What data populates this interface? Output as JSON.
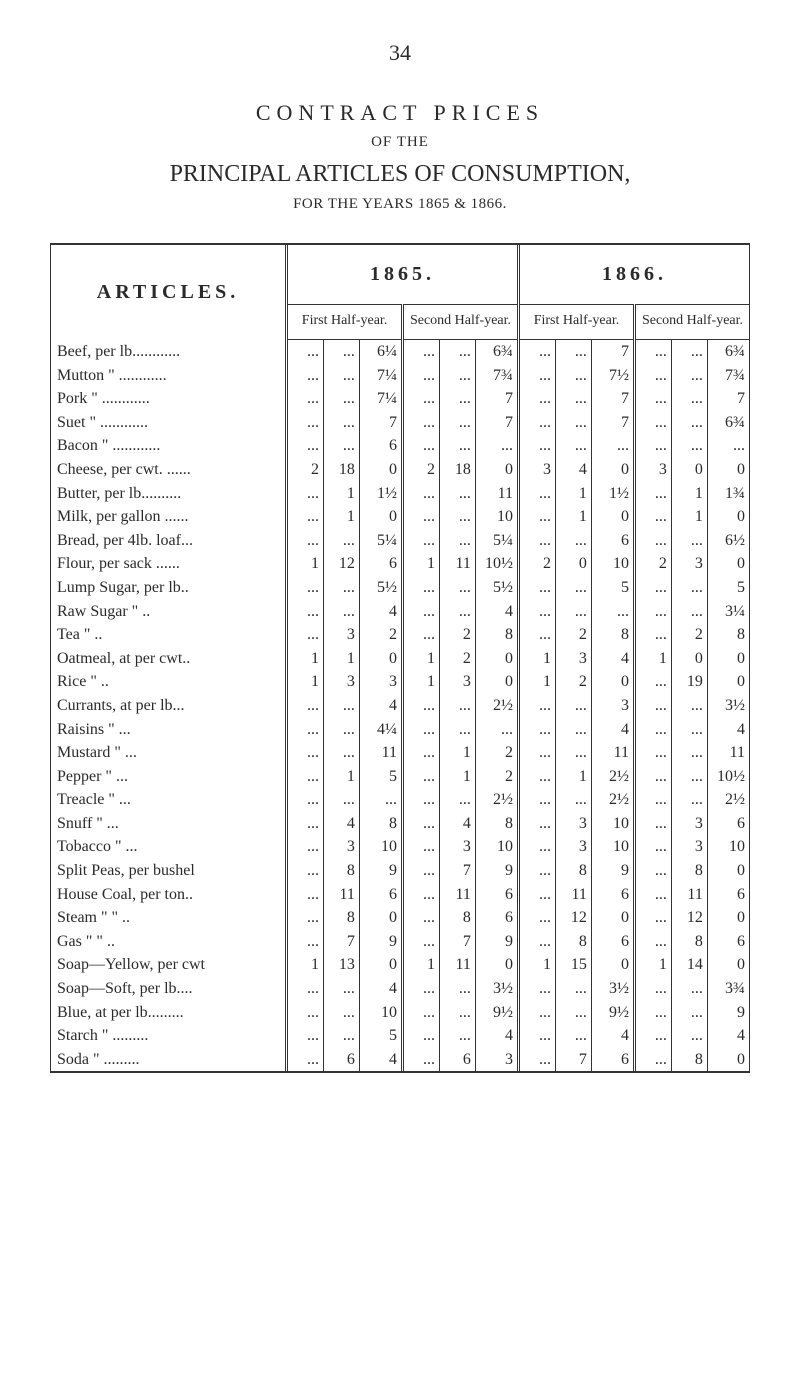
{
  "page_number": "34",
  "headings": {
    "contract_prices": "CONTRACT PRICES",
    "of_the": "OF THE",
    "principal": "PRINCIPAL ARTICLES OF CONSUMPTION,",
    "years": "FOR THE YEARS 1865 & 1866."
  },
  "table": {
    "articles_header": "ARTICLES.",
    "year1": "1865.",
    "year2": "1866.",
    "half_labels": {
      "first": "First\nHalf-year.",
      "second": "Second\nHalf-year."
    },
    "rows": [
      {
        "label": "Beef, per lb............",
        "h1": [
          "...",
          "...",
          "6¼"
        ],
        "h2": [
          "...",
          "...",
          "6¾"
        ],
        "h3": [
          "...",
          "...",
          "7"
        ],
        "h4": [
          "...",
          "...",
          "6¾"
        ]
      },
      {
        "label": "Mutton  \"  ............",
        "h1": [
          "...",
          "...",
          "7¼"
        ],
        "h2": [
          "...",
          "...",
          "7¾"
        ],
        "h3": [
          "...",
          "...",
          "7½"
        ],
        "h4": [
          "...",
          "...",
          "7¾"
        ]
      },
      {
        "label": "Pork      \"  ............",
        "h1": [
          "...",
          "...",
          "7¼"
        ],
        "h2": [
          "...",
          "...",
          "7"
        ],
        "h3": [
          "...",
          "...",
          "7"
        ],
        "h4": [
          "...",
          "...",
          "7"
        ]
      },
      {
        "label": "Suet       \"  ............",
        "h1": [
          "...",
          "...",
          "7"
        ],
        "h2": [
          "...",
          "...",
          "7"
        ],
        "h3": [
          "...",
          "...",
          "7"
        ],
        "h4": [
          "...",
          "...",
          "6¾"
        ]
      },
      {
        "label": "Bacon    \"  ............",
        "h1": [
          "...",
          "...",
          "6"
        ],
        "h2": [
          "...",
          "...",
          "..."
        ],
        "h3": [
          "...",
          "...",
          "..."
        ],
        "h4": [
          "...",
          "...",
          "..."
        ]
      },
      {
        "label": "Cheese, per cwt. ......",
        "h1": [
          "2",
          "18",
          "0"
        ],
        "h2": [
          "2",
          "18",
          "0"
        ],
        "h3": [
          "3",
          "4",
          "0"
        ],
        "h4": [
          "3",
          "0",
          "0"
        ]
      },
      {
        "label": "Butter, per lb..........",
        "h1": [
          "...",
          "1",
          "1½"
        ],
        "h2": [
          "...",
          "...",
          "11"
        ],
        "h3": [
          "...",
          "1",
          "1½"
        ],
        "h4": [
          "...",
          "1",
          "1¾"
        ]
      },
      {
        "label": "Milk, per gallon ......",
        "h1": [
          "...",
          "1",
          "0"
        ],
        "h2": [
          "...",
          "...",
          "10"
        ],
        "h3": [
          "...",
          "1",
          "0"
        ],
        "h4": [
          "...",
          "1",
          "0"
        ]
      },
      {
        "label": "Bread, per 4lb. loaf...",
        "h1": [
          "...",
          "...",
          "5¼"
        ],
        "h2": [
          "...",
          "...",
          "5¼"
        ],
        "h3": [
          "...",
          "...",
          "6"
        ],
        "h4": [
          "...",
          "...",
          "6½"
        ]
      },
      {
        "label": "Flour, per sack ......",
        "h1": [
          "1",
          "12",
          "6"
        ],
        "h2": [
          "1",
          "11",
          "10½"
        ],
        "h3": [
          "2",
          "0",
          "10"
        ],
        "h4": [
          "2",
          "3",
          "0"
        ]
      },
      {
        "label": "Lump Sugar, per lb..",
        "h1": [
          "...",
          "...",
          "5½"
        ],
        "h2": [
          "...",
          "...",
          "5½"
        ],
        "h3": [
          "...",
          "...",
          "5"
        ],
        "h4": [
          "...",
          "...",
          "5"
        ]
      },
      {
        "label": "Raw Sugar      \"  ..",
        "h1": [
          "...",
          "...",
          "4"
        ],
        "h2": [
          "...",
          "...",
          "4"
        ],
        "h3": [
          "...",
          "...",
          "..."
        ],
        "h4": [
          "...",
          "...",
          "3¼"
        ]
      },
      {
        "label": "Tea                 \"  ..",
        "h1": [
          "...",
          "3",
          "2"
        ],
        "h2": [
          "...",
          "2",
          "8"
        ],
        "h3": [
          "...",
          "2",
          "8"
        ],
        "h4": [
          "...",
          "2",
          "8"
        ]
      },
      {
        "label": "Oatmeal, at per cwt..",
        "h1": [
          "1",
          "1",
          "0"
        ],
        "h2": [
          "1",
          "2",
          "0"
        ],
        "h3": [
          "1",
          "3",
          "4"
        ],
        "h4": [
          "1",
          "0",
          "0"
        ]
      },
      {
        "label": "Rice                 \"  ..",
        "h1": [
          "1",
          "3",
          "3"
        ],
        "h2": [
          "1",
          "3",
          "0"
        ],
        "h3": [
          "1",
          "2",
          "0"
        ],
        "h4": [
          "...",
          "19",
          "0"
        ]
      },
      {
        "label": "Currants, at per lb...",
        "h1": [
          "...",
          "...",
          "4"
        ],
        "h2": [
          "...",
          "...",
          "2½"
        ],
        "h3": [
          "...",
          "...",
          "3"
        ],
        "h4": [
          "...",
          "...",
          "3½"
        ]
      },
      {
        "label": "Raisins         \"  ...",
        "h1": [
          "...",
          "...",
          "4¼"
        ],
        "h2": [
          "...",
          "...",
          "..."
        ],
        "h3": [
          "...",
          "...",
          "4"
        ],
        "h4": [
          "...",
          "...",
          "4"
        ]
      },
      {
        "label": "Mustard       \"  ...",
        "h1": [
          "...",
          "...",
          "11"
        ],
        "h2": [
          "...",
          "1",
          "2"
        ],
        "h3": [
          "...",
          "...",
          "11"
        ],
        "h4": [
          "...",
          "...",
          "11"
        ]
      },
      {
        "label": "Pepper         \"  ...",
        "h1": [
          "...",
          "1",
          "5"
        ],
        "h2": [
          "...",
          "1",
          "2"
        ],
        "h3": [
          "...",
          "1",
          "2½"
        ],
        "h4": [
          "...",
          "...",
          "10½"
        ]
      },
      {
        "label": "Treacle        \"  ...",
        "h1": [
          "...",
          "...",
          "..."
        ],
        "h2": [
          "...",
          "...",
          "2½"
        ],
        "h3": [
          "...",
          "...",
          "2½"
        ],
        "h4": [
          "...",
          "...",
          "2½"
        ]
      },
      {
        "label": "Snuff           \"  ...",
        "h1": [
          "...",
          "4",
          "8"
        ],
        "h2": [
          "...",
          "4",
          "8"
        ],
        "h3": [
          "...",
          "3",
          "10"
        ],
        "h4": [
          "...",
          "3",
          "6"
        ]
      },
      {
        "label": "Tobacco       \"  ...",
        "h1": [
          "...",
          "3",
          "10"
        ],
        "h2": [
          "...",
          "3",
          "10"
        ],
        "h3": [
          "...",
          "3",
          "10"
        ],
        "h4": [
          "...",
          "3",
          "10"
        ]
      },
      {
        "label": "Split Peas, per bushel",
        "h1": [
          "...",
          "8",
          "9"
        ],
        "h2": [
          "...",
          "7",
          "9"
        ],
        "h3": [
          "...",
          "8",
          "9"
        ],
        "h4": [
          "...",
          "8",
          "0"
        ]
      },
      {
        "label": "House Coal, per ton..",
        "h1": [
          "...",
          "11",
          "6"
        ],
        "h2": [
          "...",
          "11",
          "6"
        ],
        "h3": [
          "...",
          "11",
          "6"
        ],
        "h4": [
          "...",
          "11",
          "6"
        ]
      },
      {
        "label": "Steam   \"      \"  ..",
        "h1": [
          "...",
          "8",
          "0"
        ],
        "h2": [
          "...",
          "8",
          "6"
        ],
        "h3": [
          "...",
          "12",
          "0"
        ],
        "h4": [
          "...",
          "12",
          "0"
        ]
      },
      {
        "label": "Gas       \"      \"  ..",
        "h1": [
          "...",
          "7",
          "9"
        ],
        "h2": [
          "...",
          "7",
          "9"
        ],
        "h3": [
          "...",
          "8",
          "6"
        ],
        "h4": [
          "...",
          "8",
          "6"
        ]
      },
      {
        "label": "Soap—Yellow, per cwt",
        "h1": [
          "1",
          "13",
          "0"
        ],
        "h2": [
          "1",
          "11",
          "0"
        ],
        "h3": [
          "1",
          "15",
          "0"
        ],
        "h4": [
          "1",
          "14",
          "0"
        ]
      },
      {
        "label": "Soap—Soft, per lb....",
        "h1": [
          "...",
          "...",
          "4"
        ],
        "h2": [
          "...",
          "...",
          "3½"
        ],
        "h3": [
          "...",
          "...",
          "3½"
        ],
        "h4": [
          "...",
          "...",
          "3¾"
        ]
      },
      {
        "label": "Blue, at per lb.........",
        "h1": [
          "...",
          "...",
          "10"
        ],
        "h2": [
          "...",
          "...",
          "9½"
        ],
        "h3": [
          "...",
          "...",
          "9½"
        ],
        "h4": [
          "...",
          "...",
          "9"
        ]
      },
      {
        "label": "Starch     \"  .........",
        "h1": [
          "...",
          "...",
          "5"
        ],
        "h2": [
          "...",
          "...",
          "4"
        ],
        "h3": [
          "...",
          "...",
          "4"
        ],
        "h4": [
          "...",
          "...",
          "4"
        ]
      },
      {
        "label": "Soda        \"  .........",
        "h1": [
          "...",
          "6",
          "4"
        ],
        "h2": [
          "...",
          "6",
          "3"
        ],
        "h3": [
          "...",
          "7",
          "6"
        ],
        "h4": [
          "...",
          "8",
          "0"
        ]
      }
    ]
  },
  "colors": {
    "text": "#2a2a2a",
    "border": "#333333",
    "background": "#ffffff"
  },
  "typography": {
    "body_family": "Times New Roman serif",
    "page_number_pt": 22,
    "heading_spaced_pt": 22,
    "heading_small_pt": 15,
    "heading_main_pt": 24,
    "table_body_pt": 16,
    "half_label_pt": 14
  }
}
